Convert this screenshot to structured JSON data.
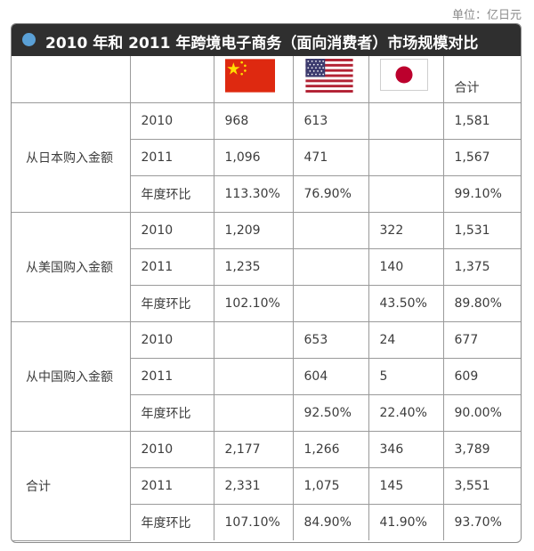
{
  "unit_note": "单位：亿日元",
  "title": "2010 年和 2011 年跨境电子商务（面向消费者）市场规模对比",
  "header": {
    "flags": [
      "china-flag-icon",
      "us-flag-icon",
      "japan-flag-icon"
    ],
    "total": "合计"
  },
  "groups": [
    {
      "label": "从日本购入金额",
      "rows": [
        {
          "label": "2010",
          "cn": "968",
          "us": "613",
          "jp": "",
          "total": "1,581"
        },
        {
          "label": "2011",
          "cn": "1,096",
          "us": "471",
          "jp": "",
          "total": "1,567"
        },
        {
          "label": "年度环比",
          "cn": "113.30%",
          "us": "76.90%",
          "jp": "",
          "total": "99.10%"
        }
      ]
    },
    {
      "label": "从美国购入金额",
      "rows": [
        {
          "label": "2010",
          "cn": "1,209",
          "us": "",
          "jp": "322",
          "total": "1,531"
        },
        {
          "label": "2011",
          "cn": "1,235",
          "us": "",
          "jp": "140",
          "total": "1,375"
        },
        {
          "label": "年度环比",
          "cn": "102.10%",
          "us": "",
          "jp": "43.50%",
          "total": "89.80%"
        }
      ]
    },
    {
      "label": "从中国购入金额",
      "rows": [
        {
          "label": "2010",
          "cn": "",
          "us": "653",
          "jp": "24",
          "total": "677"
        },
        {
          "label": "2011",
          "cn": "",
          "us": "604",
          "jp": "5",
          "total": "609"
        },
        {
          "label": "年度环比",
          "cn": "",
          "us": "92.50%",
          "jp": "22.40%",
          "total": "90.00%"
        }
      ]
    },
    {
      "label": "合计",
      "rows": [
        {
          "label": "2010",
          "cn": "2,177",
          "us": "1,266",
          "jp": "346",
          "total": "3,789"
        },
        {
          "label": "2011",
          "cn": "2,331",
          "us": "1,075",
          "jp": "145",
          "total": "3,551"
        },
        {
          "label": "年度环比",
          "cn": "107.10%",
          "us": "84.90%",
          "jp": "41.90%",
          "total": "93.70%"
        }
      ]
    }
  ],
  "colors": {
    "title_bar": "#2f2f2f",
    "title_dot": "#5aa0d6",
    "china_red": "#de2910",
    "china_star": "#ffde00",
    "us_red": "#b22234",
    "us_blue": "#3c3b6e",
    "japan_red": "#bc002d"
  }
}
